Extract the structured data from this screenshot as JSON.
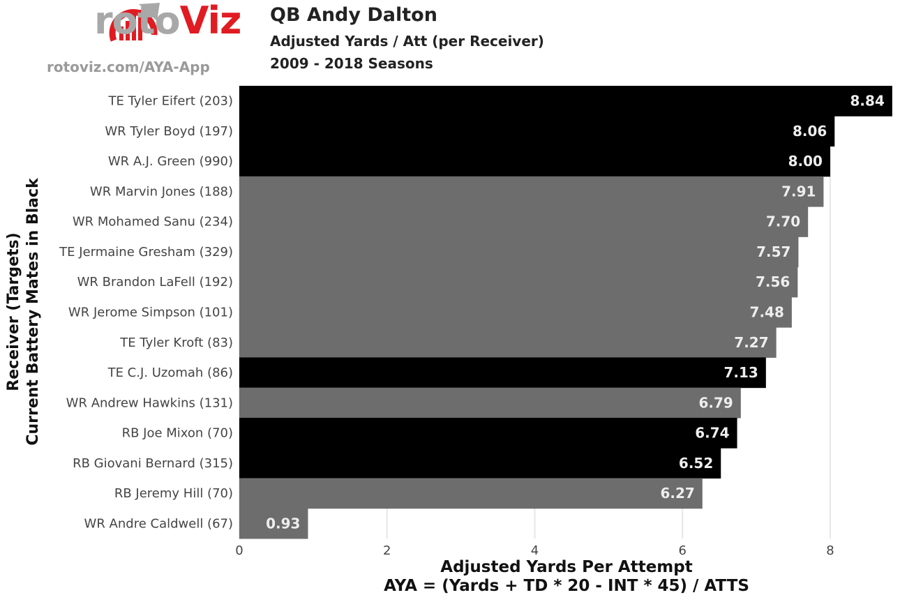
{
  "logo": {
    "brand_part1": "roto",
    "brand_part2": "Viz",
    "url": "rotoviz.com/AYA-App"
  },
  "colors": {
    "current": "#000000",
    "former": "#6d6d6d",
    "grid": "#e6e6e6",
    "logo_red": "#e11b22",
    "logo_gray": "#a8a8a8"
  },
  "chart_data": {
    "type": "bar",
    "orientation": "horizontal",
    "title": "QB Andy Dalton",
    "subtitle": "Adjusted Yards / Att (per Receiver)",
    "subtitle2": "2009 - 2018 Seasons",
    "ylabel_line1": "Receiver (Targets)",
    "ylabel_line2": "Current Battery Mates in Black",
    "xlabel_line1": "Adjusted Yards Per Attempt",
    "xlabel_line2": "AYA = (Yards + TD * 20 - INT * 45) / ATTS",
    "xlim": [
      0,
      8.86
    ],
    "xticks": [
      "0",
      "2",
      "4",
      "6",
      "8"
    ],
    "grid": true,
    "categories": [
      "TE Tyler Eifert (203)",
      "WR Tyler Boyd (197)",
      "WR A.J. Green (990)",
      "WR Marvin Jones (188)",
      "WR Mohamed Sanu (234)",
      "TE Jermaine Gresham (329)",
      "WR Brandon LaFell (192)",
      "WR Jerome Simpson (101)",
      "TE Tyler Kroft (83)",
      "TE C.J. Uzomah (86)",
      "WR Andrew Hawkins (131)",
      "RB Joe Mixon (70)",
      "RB Giovani Bernard (315)",
      "RB Jeremy Hill (70)",
      "WR Andre Caldwell (67)"
    ],
    "values": [
      8.84,
      8.06,
      8.0,
      7.91,
      7.7,
      7.57,
      7.56,
      7.48,
      7.27,
      7.13,
      6.79,
      6.74,
      6.52,
      6.27,
      0.93
    ],
    "labels": [
      "8.84",
      "8.06",
      "8.00",
      "7.91",
      "7.70",
      "7.57",
      "7.56",
      "7.48",
      "7.27",
      "7.13",
      "6.79",
      "6.74",
      "6.52",
      "6.27",
      "0.93"
    ],
    "current": [
      true,
      true,
      true,
      false,
      false,
      false,
      false,
      false,
      false,
      true,
      false,
      true,
      true,
      false,
      false
    ]
  }
}
